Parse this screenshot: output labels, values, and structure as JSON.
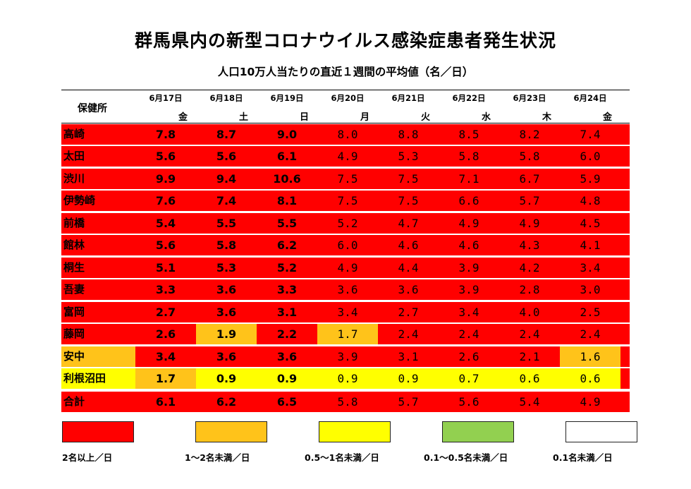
{
  "title": "群馬県内の新型コロナウイルス感染症患者発生状況",
  "subtitle": "人口10万人当たりの直近１週間の平均値（名／日）",
  "header": {
    "office_label": "保健所",
    "dates": [
      "6月17日",
      "6月18日",
      "6月19日",
      "6月20日",
      "6月21日",
      "6月22日",
      "6月23日",
      "6月24日"
    ],
    "weekdays": [
      "金",
      "土",
      "日",
      "月",
      "火",
      "水",
      "木",
      "金"
    ]
  },
  "colors": {
    "red": "#ff0000",
    "orange": "#ffc31a",
    "yellow": "#ffff00",
    "green": "#92d050",
    "white": "#ffffff"
  },
  "rows": [
    {
      "name": "高崎",
      "name_level": "red",
      "values": [
        "7.8",
        "8.7",
        "9.0",
        "8.0",
        "8.8",
        "8.5",
        "8.2",
        "7.4"
      ],
      "levels": [
        "red",
        "red",
        "red",
        "red",
        "red",
        "red",
        "red",
        "red"
      ]
    },
    {
      "name": "太田",
      "name_level": "red",
      "values": [
        "5.6",
        "5.6",
        "6.1",
        "4.9",
        "5.3",
        "5.8",
        "5.8",
        "6.0"
      ],
      "levels": [
        "red",
        "red",
        "red",
        "red",
        "red",
        "red",
        "red",
        "red"
      ]
    },
    {
      "name": "渋川",
      "name_level": "red",
      "values": [
        "9.9",
        "9.4",
        "10.6",
        "7.5",
        "7.5",
        "7.1",
        "6.7",
        "5.9"
      ],
      "levels": [
        "red",
        "red",
        "red",
        "red",
        "red",
        "red",
        "red",
        "red"
      ]
    },
    {
      "name": "伊勢崎",
      "name_level": "red",
      "values": [
        "7.6",
        "7.4",
        "8.1",
        "7.5",
        "7.5",
        "6.6",
        "5.7",
        "4.8"
      ],
      "levels": [
        "red",
        "red",
        "red",
        "red",
        "red",
        "red",
        "red",
        "red"
      ]
    },
    {
      "name": "前橋",
      "name_level": "red",
      "values": [
        "5.4",
        "5.5",
        "5.5",
        "5.2",
        "4.7",
        "4.9",
        "4.9",
        "4.5"
      ],
      "levels": [
        "red",
        "red",
        "red",
        "red",
        "red",
        "red",
        "red",
        "red"
      ]
    },
    {
      "name": "館林",
      "name_level": "red",
      "values": [
        "5.6",
        "5.8",
        "6.2",
        "6.0",
        "4.6",
        "4.6",
        "4.3",
        "4.1"
      ],
      "levels": [
        "red",
        "red",
        "red",
        "red",
        "red",
        "red",
        "red",
        "red"
      ]
    },
    {
      "name": "桐生",
      "name_level": "red",
      "values": [
        "5.1",
        "5.3",
        "5.2",
        "4.9",
        "4.4",
        "3.9",
        "4.2",
        "3.4"
      ],
      "levels": [
        "red",
        "red",
        "red",
        "red",
        "red",
        "red",
        "red",
        "red"
      ]
    },
    {
      "name": "吾妻",
      "name_level": "red",
      "values": [
        "3.3",
        "3.6",
        "3.3",
        "3.6",
        "3.6",
        "3.9",
        "2.8",
        "3.0"
      ],
      "levels": [
        "red",
        "red",
        "red",
        "red",
        "red",
        "red",
        "red",
        "red"
      ]
    },
    {
      "name": "富岡",
      "name_level": "red",
      "values": [
        "2.7",
        "3.6",
        "3.1",
        "3.4",
        "2.7",
        "3.4",
        "4.0",
        "2.5"
      ],
      "levels": [
        "red",
        "red",
        "red",
        "red",
        "red",
        "red",
        "red",
        "red"
      ]
    },
    {
      "name": "藤岡",
      "name_level": "red",
      "values": [
        "2.6",
        "1.9",
        "2.2",
        "1.7",
        "2.4",
        "2.4",
        "2.4",
        "2.4"
      ],
      "levels": [
        "red",
        "orange",
        "red",
        "orange",
        "red",
        "red",
        "red",
        "red"
      ]
    },
    {
      "name": "安中",
      "name_level": "orange",
      "values": [
        "3.4",
        "3.6",
        "3.6",
        "3.9",
        "3.1",
        "2.6",
        "2.1",
        "1.6"
      ],
      "levels": [
        "red",
        "red",
        "red",
        "red",
        "red",
        "red",
        "red",
        "orange"
      ]
    },
    {
      "name": "利根沼田",
      "name_level": "yellow",
      "values": [
        "1.7",
        "0.9",
        "0.9",
        "0.9",
        "0.9",
        "0.7",
        "0.6",
        "0.6"
      ],
      "levels": [
        "orange",
        "yellow",
        "yellow",
        "yellow",
        "yellow",
        "yellow",
        "yellow",
        "yellow"
      ]
    },
    {
      "name": "合計",
      "name_level": "red",
      "values": [
        "6.1",
        "6.2",
        "6.5",
        "5.8",
        "5.7",
        "5.6",
        "5.4",
        "4.9"
      ],
      "levels": [
        "red",
        "red",
        "red",
        "red",
        "red",
        "red",
        "red",
        "red"
      ]
    }
  ],
  "legend": [
    {
      "level": "red",
      "label": "2名以上／日"
    },
    {
      "level": "orange",
      "label": "1～2名未満／日"
    },
    {
      "level": "yellow",
      "label": "0.5～1名未満／日"
    },
    {
      "level": "green",
      "label": "0.1～0.5名未満／日"
    },
    {
      "level": "white",
      "label": "0.1名未満／日"
    }
  ]
}
